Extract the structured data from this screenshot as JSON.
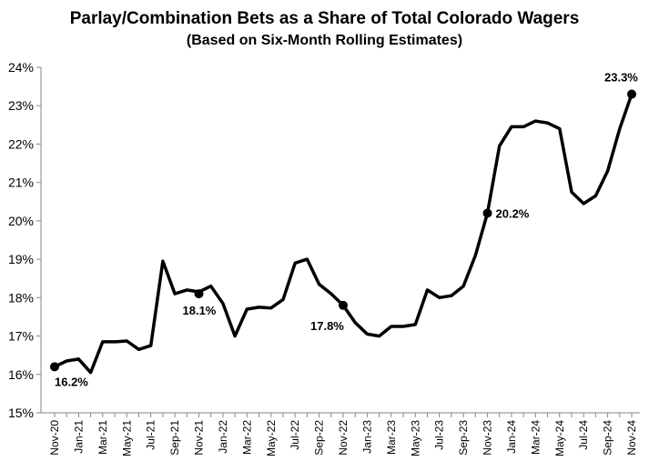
{
  "chart_data": {
    "type": "line",
    "title": "Parlay/Combination Bets as a Share of Total Colorado Wagers",
    "subtitle": "(Based on Six-Month Rolling Estimates)",
    "xlabel": "",
    "ylabel": "",
    "ylim": [
      15,
      24
    ],
    "y_ticks": [
      "15%",
      "16%",
      "17%",
      "18%",
      "19%",
      "20%",
      "21%",
      "22%",
      "23%",
      "24%"
    ],
    "grid": false,
    "legend": "none",
    "line_color": "#000000",
    "x": [
      "Nov-20",
      "Dec-20",
      "Jan-21",
      "Feb-21",
      "Mar-21",
      "Apr-21",
      "May-21",
      "Jun-21",
      "Jul-21",
      "Aug-21",
      "Sep-21",
      "Oct-21",
      "Nov-21",
      "Dec-21",
      "Jan-22",
      "Feb-22",
      "Mar-22",
      "Apr-22",
      "May-22",
      "Jun-22",
      "Jul-22",
      "Aug-22",
      "Sep-22",
      "Oct-22",
      "Nov-22",
      "Dec-22",
      "Jan-23",
      "Feb-23",
      "Mar-23",
      "Apr-23",
      "May-23",
      "Jun-23",
      "Jul-23",
      "Aug-23",
      "Sep-23",
      "Oct-23",
      "Nov-23",
      "Dec-23",
      "Jan-24",
      "Feb-24",
      "Mar-24",
      "Apr-24",
      "May-24",
      "Jun-24",
      "Jul-24",
      "Aug-24",
      "Sep-24",
      "Oct-24",
      "Nov-24"
    ],
    "x_tick_labels": [
      "Nov-20",
      "Jan-21",
      "Mar-21",
      "May-21",
      "Jul-21",
      "Sep-21",
      "Nov-21",
      "Jan-22",
      "Mar-22",
      "May-22",
      "Jul-22",
      "Sep-22",
      "Nov-22",
      "Jan-23",
      "Mar-23",
      "May-23",
      "Jul-23",
      "Sep-23",
      "Nov-23",
      "Jan-24",
      "Mar-24",
      "May-24",
      "Jul-24",
      "Sep-24",
      "Nov-24"
    ],
    "series": [
      {
        "values": [
          16.2,
          16.35,
          16.4,
          16.05,
          16.85,
          16.85,
          16.87,
          16.65,
          16.75,
          18.95,
          18.1,
          18.2,
          18.15,
          18.3,
          17.85,
          17.0,
          17.7,
          17.75,
          17.73,
          17.95,
          18.9,
          19.0,
          18.35,
          18.1,
          17.8,
          17.35,
          17.05,
          17.0,
          17.25,
          17.25,
          17.3,
          18.2,
          18.0,
          18.05,
          18.3,
          19.1,
          20.2,
          21.95,
          22.45,
          22.45,
          22.6,
          22.55,
          22.4,
          20.75,
          20.45,
          20.65,
          21.3,
          22.4,
          23.3
        ]
      }
    ],
    "highlighted_points": [
      {
        "x": "Nov-20",
        "value": 16.2,
        "label": "16.2%"
      },
      {
        "x": "Nov-21",
        "value": 18.1,
        "label": "18.1%"
      },
      {
        "x": "Nov-22",
        "value": 17.8,
        "label": "17.8%"
      },
      {
        "x": "Nov-23",
        "value": 20.2,
        "label": "20.2%"
      },
      {
        "x": "Nov-24",
        "value": 23.3,
        "label": "23.3%"
      }
    ]
  }
}
